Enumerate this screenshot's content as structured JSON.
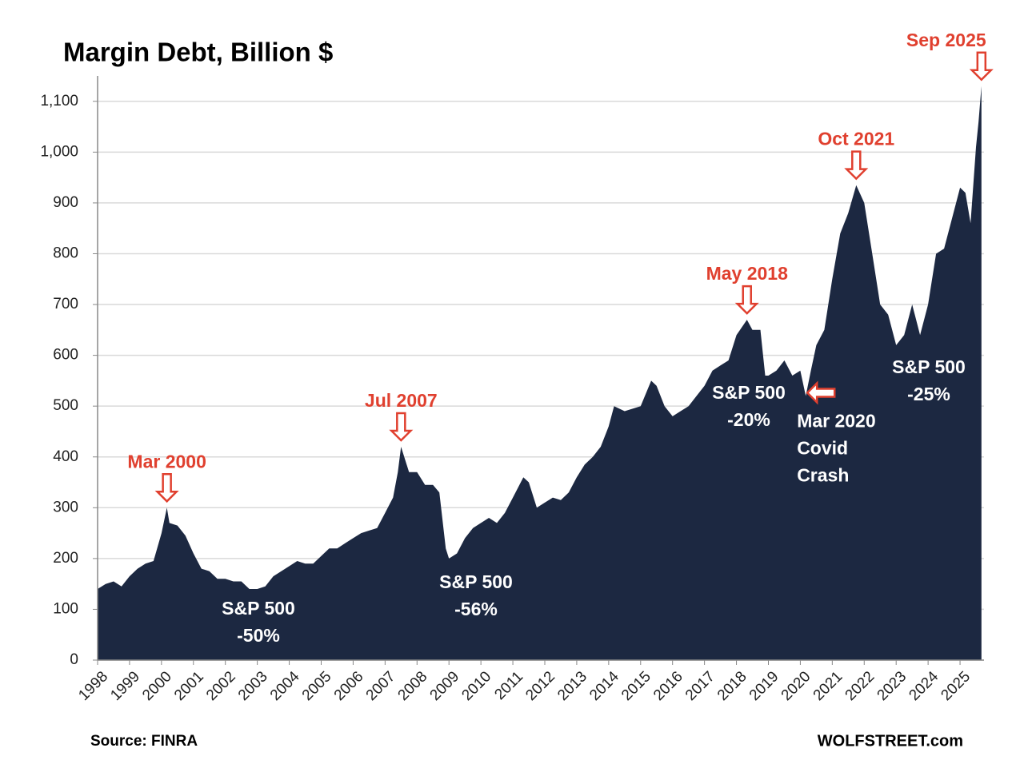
{
  "chart_data": {
    "type": "area",
    "title": "Margin Debt, Billion $",
    "x": [
      1998.0,
      1998.25,
      1998.5,
      1998.75,
      1999.0,
      1999.25,
      1999.5,
      1999.75,
      2000.0,
      2000.17,
      2000.25,
      2000.5,
      2000.75,
      2001.0,
      2001.25,
      2001.5,
      2001.75,
      2002.0,
      2002.25,
      2002.5,
      2002.75,
      2003.0,
      2003.25,
      2003.5,
      2003.75,
      2004.0,
      2004.25,
      2004.5,
      2004.75,
      2005.0,
      2005.25,
      2005.5,
      2005.75,
      2006.0,
      2006.25,
      2006.5,
      2006.75,
      2007.0,
      2007.25,
      2007.4,
      2007.5,
      2007.75,
      2008.0,
      2008.25,
      2008.5,
      2008.7,
      2008.9,
      2009.0,
      2009.25,
      2009.5,
      2009.75,
      2010.0,
      2010.25,
      2010.5,
      2010.75,
      2011.0,
      2011.33,
      2011.5,
      2011.75,
      2012.0,
      2012.25,
      2012.5,
      2012.75,
      2013.0,
      2013.25,
      2013.5,
      2013.75,
      2014.0,
      2014.17,
      2014.5,
      2014.75,
      2015.0,
      2015.33,
      2015.5,
      2015.75,
      2016.0,
      2016.25,
      2016.5,
      2016.75,
      2017.0,
      2017.25,
      2017.5,
      2017.75,
      2018.0,
      2018.33,
      2018.5,
      2018.75,
      2018.9,
      2019.0,
      2019.25,
      2019.5,
      2019.75,
      2020.0,
      2020.17,
      2020.33,
      2020.5,
      2020.75,
      2021.0,
      2021.25,
      2021.5,
      2021.75,
      2022.0,
      2022.25,
      2022.5,
      2022.75,
      2023.0,
      2023.25,
      2023.5,
      2023.75,
      2024.0,
      2024.25,
      2024.5,
      2024.75,
      2025.0,
      2025.17,
      2025.33,
      2025.5,
      2025.58,
      2025.67
    ],
    "values": [
      140,
      150,
      155,
      145,
      165,
      180,
      190,
      195,
      250,
      300,
      270,
      265,
      245,
      210,
      180,
      175,
      160,
      160,
      155,
      155,
      140,
      140,
      145,
      165,
      175,
      185,
      195,
      190,
      190,
      205,
      220,
      220,
      230,
      240,
      250,
      255,
      260,
      290,
      320,
      370,
      420,
      370,
      370,
      345,
      345,
      330,
      220,
      200,
      210,
      240,
      260,
      270,
      280,
      270,
      290,
      320,
      360,
      350,
      300,
      310,
      320,
      315,
      330,
      360,
      385,
      400,
      420,
      460,
      500,
      490,
      495,
      500,
      550,
      540,
      500,
      480,
      490,
      500,
      520,
      540,
      570,
      580,
      590,
      640,
      670,
      650,
      650,
      560,
      560,
      570,
      590,
      560,
      570,
      520,
      570,
      620,
      650,
      750,
      840,
      880,
      935,
      900,
      800,
      700,
      680,
      620,
      640,
      700,
      640,
      700,
      800,
      810,
      870,
      930,
      920,
      860,
      1010,
      1060,
      1130
    ],
    "color": "#1c2841",
    "xlim": [
      1998,
      2025.75
    ],
    "xticks": [
      1998,
      1999,
      2000,
      2001,
      2002,
      2003,
      2004,
      2005,
      2006,
      2007,
      2008,
      2009,
      2010,
      2011,
      2012,
      2013,
      2014,
      2015,
      2016,
      2017,
      2018,
      2019,
      2020,
      2021,
      2022,
      2023,
      2024,
      2025
    ],
    "ylim": [
      0,
      1150
    ],
    "yticks": [
      0,
      100,
      200,
      300,
      400,
      500,
      600,
      700,
      800,
      900,
      {
        "value": 1000,
        "label": "1,000"
      },
      {
        "value": 1100,
        "label": "1,100"
      }
    ],
    "grid": true,
    "event_annotations": [
      {
        "text": "Mar 2000",
        "x": 2000.17,
        "y": 300
      },
      {
        "text": "Jul 2007",
        "x": 2007.5,
        "y": 420
      },
      {
        "text": "May 2018",
        "x": 2018.33,
        "y": 670
      },
      {
        "text": "Oct 2021",
        "x": 2021.75,
        "y": 935
      },
      {
        "text": "Sep 2025",
        "x": 2025.67,
        "y": 1130
      },
      {
        "lines": [
          "Mar 2020",
          "Covid",
          "Crash"
        ],
        "x": 2020.17,
        "y": 520
      }
    ],
    "decline_annotations": [
      [
        "S&P 500",
        "-50%"
      ],
      [
        "S&P 500",
        "-56%"
      ],
      [
        "S&P 500",
        "-20%"
      ],
      [
        "S&P 500",
        "-25%"
      ]
    ],
    "source": "Source: FINRA",
    "credit": "WOLFSTREET.com"
  }
}
